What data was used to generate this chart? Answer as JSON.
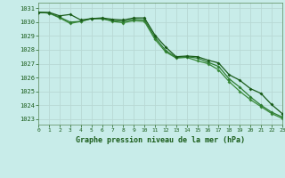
{
  "title": "Graphe pression niveau de la mer (hPa)",
  "bg_color": "#c8ece9",
  "grid_color": "#b8d8d4",
  "line_color1": "#1a5c1a",
  "line_color2": "#2e7d32",
  "line_color3": "#3a8a3a",
  "xlim": [
    0,
    23
  ],
  "ylim": [
    1022.6,
    1031.4
  ],
  "yticks": [
    1023,
    1024,
    1025,
    1026,
    1027,
    1028,
    1029,
    1030,
    1031
  ],
  "xticks": [
    0,
    1,
    2,
    3,
    4,
    5,
    6,
    7,
    8,
    9,
    10,
    11,
    12,
    13,
    14,
    15,
    16,
    17,
    18,
    19,
    20,
    21,
    22,
    23
  ],
  "series1_y": [
    1030.7,
    1030.7,
    1030.45,
    1030.55,
    1030.15,
    1030.25,
    1030.3,
    1030.2,
    1030.15,
    1030.3,
    1030.3,
    1029.05,
    1028.2,
    1027.5,
    1027.55,
    1027.5,
    1027.25,
    1027.05,
    1026.2,
    1025.8,
    1025.2,
    1024.85,
    1024.05,
    1023.4
  ],
  "series2_y": [
    1030.7,
    1030.65,
    1030.35,
    1030.0,
    1030.05,
    1030.25,
    1030.25,
    1030.1,
    1030.05,
    1030.2,
    1030.15,
    1028.9,
    1027.95,
    1027.45,
    1027.5,
    1027.4,
    1027.1,
    1026.8,
    1025.9,
    1025.3,
    1024.6,
    1024.0,
    1023.5,
    1023.15
  ],
  "series3_y": [
    1030.7,
    1030.65,
    1030.3,
    1029.9,
    1030.05,
    1030.25,
    1030.25,
    1030.05,
    1029.95,
    1030.1,
    1030.05,
    1028.75,
    1027.85,
    1027.4,
    1027.45,
    1027.2,
    1027.0,
    1026.55,
    1025.7,
    1025.0,
    1024.4,
    1023.9,
    1023.4,
    1023.05
  ],
  "label_bg": "#1a5c1a",
  "label_fg": "#c8ece9",
  "spine_color": "#5a8a5a"
}
